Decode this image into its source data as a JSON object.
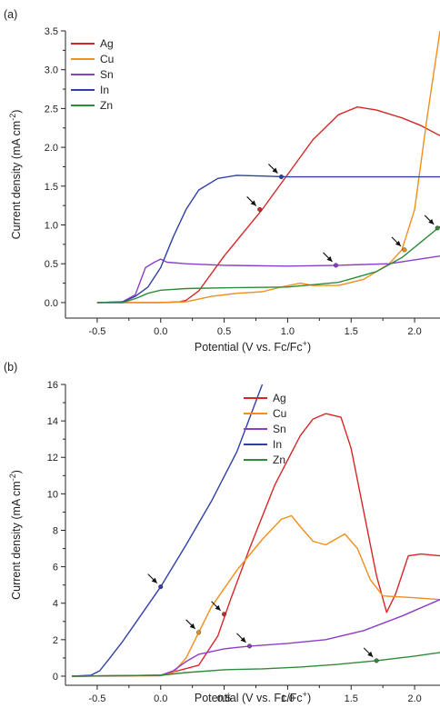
{
  "chart_data": [
    {
      "type": "line",
      "panel_label": "(a)",
      "xlabel": "Potential (V vs. Fc/Fc",
      "xlabel_sup": "+",
      "xlabel_end": ")",
      "ylabel": "Current density (mA cm",
      "ylabel_sup": "-2",
      "ylabel_end": ")",
      "xlim": [
        -0.75,
        2.2
      ],
      "ylim": [
        -0.2,
        3.5
      ],
      "xticks": [
        -0.5,
        0.0,
        0.5,
        1.0,
        1.5,
        2.0
      ],
      "xtick_labels": [
        "-0.5",
        "0.0",
        "0.5",
        "1.0",
        "1.5",
        "2.0"
      ],
      "yticks": [
        0.0,
        0.5,
        1.0,
        1.5,
        2.0,
        2.5,
        3.0,
        3.5
      ],
      "ytick_labels": [
        "0.0",
        "0.5",
        "1.0",
        "1.5",
        "2.0",
        "2.5",
        "3.0",
        "3.5"
      ],
      "legend_position": "top-left",
      "series": [
        {
          "name": "Ag",
          "color": "#d62728",
          "x": [
            -0.5,
            0.0,
            0.15,
            0.2,
            0.3,
            0.5,
            0.8,
            1.0,
            1.2,
            1.4,
            1.55,
            1.7,
            1.9,
            2.05,
            2.2
          ],
          "y": [
            0.0,
            0.0,
            0.01,
            0.03,
            0.15,
            0.6,
            1.2,
            1.65,
            2.1,
            2.42,
            2.52,
            2.48,
            2.38,
            2.28,
            2.15
          ]
        },
        {
          "name": "Cu",
          "color": "#f28e1c",
          "x": [
            -0.5,
            0.0,
            0.2,
            0.4,
            0.6,
            0.8,
            0.95,
            1.1,
            1.2,
            1.4,
            1.6,
            1.8,
            1.9,
            2.0,
            2.1,
            2.2
          ],
          "y": [
            0.0,
            0.0,
            0.01,
            0.08,
            0.12,
            0.14,
            0.2,
            0.25,
            0.22,
            0.22,
            0.3,
            0.5,
            0.68,
            1.2,
            2.4,
            3.5
          ]
        },
        {
          "name": "Sn",
          "color": "#8b3fc7",
          "x": [
            -0.5,
            -0.3,
            -0.2,
            -0.12,
            -0.05,
            0.0,
            0.05,
            0.2,
            0.5,
            1.0,
            1.4,
            1.8,
            2.2
          ],
          "y": [
            0.0,
            0.01,
            0.1,
            0.45,
            0.52,
            0.56,
            0.52,
            0.5,
            0.48,
            0.47,
            0.48,
            0.5,
            0.6
          ]
        },
        {
          "name": "In",
          "color": "#3040a8",
          "x": [
            -0.5,
            -0.3,
            -0.2,
            -0.1,
            0.0,
            0.1,
            0.2,
            0.3,
            0.45,
            0.6,
            0.8,
            1.0,
            1.5,
            2.0,
            2.2
          ],
          "y": [
            0.0,
            0.01,
            0.08,
            0.2,
            0.45,
            0.85,
            1.2,
            1.45,
            1.6,
            1.64,
            1.63,
            1.62,
            1.62,
            1.62,
            1.62
          ]
        },
        {
          "name": "Zn",
          "color": "#2e8b3a",
          "x": [
            -0.5,
            -0.3,
            -0.2,
            -0.1,
            0.0,
            0.2,
            0.5,
            1.0,
            1.4,
            1.7,
            1.9,
            2.05,
            2.2
          ],
          "y": [
            0.0,
            0.0,
            0.05,
            0.12,
            0.16,
            0.18,
            0.19,
            0.2,
            0.26,
            0.4,
            0.58,
            0.78,
            0.98
          ]
        }
      ],
      "annotations": [
        {
          "x": 0.78,
          "y": 1.2,
          "color": "#d62728"
        },
        {
          "x": 1.92,
          "y": 0.68,
          "color": "#f28e1c"
        },
        {
          "x": 1.38,
          "y": 0.48,
          "color": "#8b3fc7"
        },
        {
          "x": 0.95,
          "y": 1.62,
          "color": "#3040a8"
        },
        {
          "x": 2.18,
          "y": 0.96,
          "color": "#2e8b3a"
        }
      ]
    },
    {
      "type": "line",
      "panel_label": "(b)",
      "xlabel": "Potential (V vs. Fc/Fc",
      "xlabel_sup": "+",
      "xlabel_end": ")",
      "ylabel": "Current density (mA cm",
      "ylabel_sup": "-2",
      "ylabel_end": ")",
      "xlim": [
        -0.75,
        2.2
      ],
      "ylim": [
        -0.5,
        16
      ],
      "xticks": [
        -0.5,
        0.0,
        0.5,
        1.0,
        1.5,
        2.0
      ],
      "xtick_labels": [
        "-0.5",
        "0.0",
        "0.5",
        "1.0",
        "1.5",
        "2.0"
      ],
      "yticks": [
        0,
        2,
        4,
        6,
        8,
        10,
        12,
        14,
        16
      ],
      "ytick_labels": [
        "0",
        "2",
        "4",
        "6",
        "8",
        "10",
        "12",
        "14",
        "16"
      ],
      "legend_position": "top-right",
      "series": [
        {
          "name": "Ag",
          "color": "#d62728",
          "x": [
            -0.7,
            0.0,
            0.3,
            0.45,
            0.55,
            0.7,
            0.9,
            1.1,
            1.2,
            1.3,
            1.42,
            1.5,
            1.6,
            1.7,
            1.78,
            1.85,
            1.95,
            2.05,
            2.2
          ],
          "y": [
            0.0,
            0.05,
            0.6,
            2.2,
            4.2,
            7.0,
            10.5,
            13.2,
            14.1,
            14.4,
            14.2,
            12.5,
            9.0,
            5.5,
            3.5,
            4.5,
            6.6,
            6.7,
            6.6
          ]
        },
        {
          "name": "Cu",
          "color": "#f28e1c",
          "x": [
            -0.7,
            0.0,
            0.1,
            0.2,
            0.3,
            0.4,
            0.6,
            0.8,
            0.95,
            1.03,
            1.1,
            1.2,
            1.3,
            1.45,
            1.55,
            1.65,
            1.75,
            2.0,
            2.2
          ],
          "y": [
            0.0,
            0.02,
            0.2,
            1.0,
            2.4,
            3.8,
            5.8,
            7.5,
            8.6,
            8.8,
            8.2,
            7.4,
            7.2,
            7.8,
            7.0,
            5.3,
            4.4,
            4.3,
            4.2
          ]
        },
        {
          "name": "Sn",
          "color": "#8b3fc7",
          "x": [
            -0.7,
            0.0,
            0.1,
            0.2,
            0.3,
            0.5,
            0.7,
            1.0,
            1.3,
            1.6,
            1.9,
            2.2
          ],
          "y": [
            0.0,
            0.05,
            0.3,
            0.8,
            1.2,
            1.5,
            1.65,
            1.8,
            2.0,
            2.5,
            3.3,
            4.2
          ]
        },
        {
          "name": "In",
          "color": "#3040a8",
          "x": [
            -0.7,
            -0.55,
            -0.48,
            -0.4,
            -0.3,
            -0.2,
            -0.1,
            0.0,
            0.2,
            0.4,
            0.6,
            0.8
          ],
          "y": [
            0.0,
            0.05,
            0.3,
            1.0,
            1.9,
            2.9,
            3.9,
            4.9,
            7.2,
            9.6,
            12.3,
            16.0
          ]
        },
        {
          "name": "Zn",
          "color": "#2e8b3a",
          "x": [
            -0.7,
            0.0,
            0.2,
            0.5,
            0.8,
            1.1,
            1.4,
            1.7,
            2.0,
            2.2
          ],
          "y": [
            0.0,
            0.05,
            0.2,
            0.35,
            0.4,
            0.5,
            0.65,
            0.85,
            1.1,
            1.3
          ]
        }
      ],
      "annotations": [
        {
          "x": 0.5,
          "y": 3.4,
          "color": "#d62728"
        },
        {
          "x": 0.3,
          "y": 2.4,
          "color": "#f28e1c"
        },
        {
          "x": 0.7,
          "y": 1.65,
          "color": "#8b3fc7"
        },
        {
          "x": 0.0,
          "y": 4.9,
          "color": "#3040a8"
        },
        {
          "x": 1.7,
          "y": 0.85,
          "color": "#2e8b3a"
        }
      ]
    }
  ]
}
